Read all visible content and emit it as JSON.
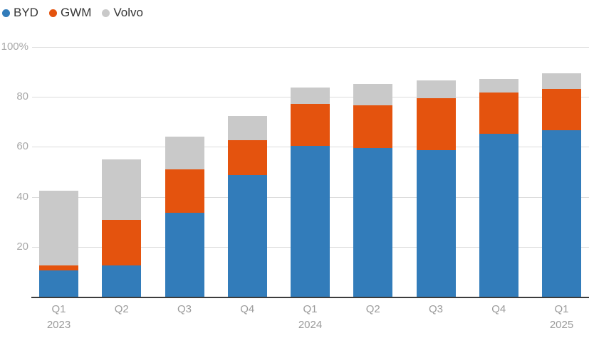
{
  "legend": {
    "items": [
      {
        "label": "BYD",
        "color": "#327cba"
      },
      {
        "label": "GWM",
        "color": "#e4530e"
      },
      {
        "label": "Volvo",
        "color": "#c9c9c9"
      }
    ]
  },
  "chart_data": {
    "type": "bar",
    "stacked": true,
    "title": "",
    "xlabel": "",
    "ylabel": "",
    "unit": "%",
    "ylim": [
      0,
      100
    ],
    "grid": true,
    "legend_position": "top-left",
    "categories": [
      "Q1 2023",
      "Q2 2023",
      "Q3 2023",
      "Q4 2023",
      "Q1 2024",
      "Q2 2024",
      "Q3 2024",
      "Q4 2024",
      "Q1 2025"
    ],
    "x_tick_labels": [
      "Q1",
      "Q2",
      "Q3",
      "Q4",
      "Q1",
      "Q2",
      "Q3",
      "Q4",
      "Q1"
    ],
    "x_year_labels": [
      "2023",
      "",
      "",
      "",
      "2024",
      "",
      "",
      "",
      "2025"
    ],
    "series": [
      {
        "name": "BYD",
        "color": "#327cba",
        "values": [
          10.5,
          12.5,
          33.5,
          48.7,
          60.4,
          59.4,
          58.7,
          65.3,
          66.7
        ]
      },
      {
        "name": "GWM",
        "color": "#e4530e",
        "values": [
          2.0,
          18.3,
          17.5,
          14.0,
          16.8,
          17.3,
          20.9,
          16.4,
          16.4
        ]
      },
      {
        "name": "Volvo",
        "color": "#c9c9c9",
        "values": [
          30.0,
          24.2,
          13.0,
          9.7,
          6.6,
          8.4,
          7.1,
          5.5,
          6.4
        ]
      }
    ],
    "stack_totals": [
      42.5,
      55.0,
      64.0,
      72.4,
      83.8,
      85.1,
      86.7,
      87.2,
      89.5
    ],
    "y_ticks": [
      {
        "value": 100,
        "label": "100%"
      },
      {
        "value": 80,
        "label": "80"
      },
      {
        "value": 60,
        "label": "60"
      },
      {
        "value": 40,
        "label": "40"
      },
      {
        "value": 20,
        "label": "20"
      }
    ],
    "colors": {
      "gridline": "#dcdcdc",
      "baseline": "#3c3c3c",
      "y_tick_text": "#a8a8a8",
      "x_tick_text": "#9b9b9b",
      "legend_text": "#363636",
      "background": "#ffffff"
    }
  }
}
